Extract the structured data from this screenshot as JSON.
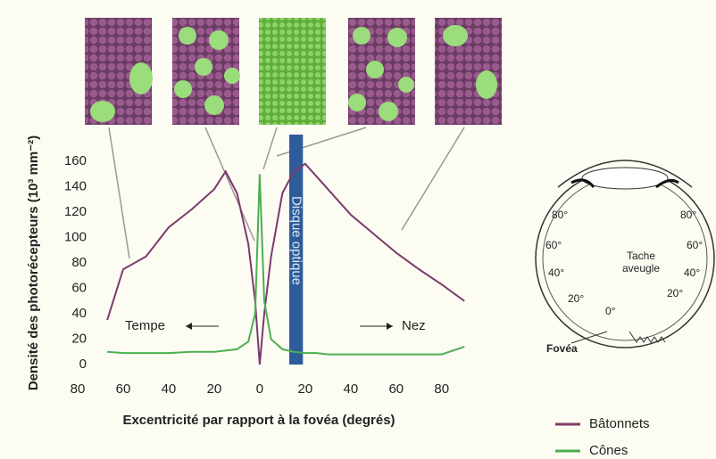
{
  "chart_data": {
    "type": "line",
    "y_label": "Densité des photorécepteurs (10³ mm⁻²)",
    "x_label": "Excentricité par rapport à la fovéa (degrés)",
    "x": [
      -67,
      -60,
      -50,
      -40,
      -30,
      -20,
      -15,
      -10,
      -5,
      -2,
      0,
      2,
      5,
      10,
      15,
      20,
      25,
      30,
      40,
      50,
      60,
      70,
      80,
      90
    ],
    "series": [
      {
        "name": "Bâtonnets",
        "color": "#7b3a6a",
        "values": [
          35,
          75,
          85,
          108,
          122,
          138,
          152,
          135,
          95,
          50,
          0,
          40,
          85,
          135,
          152,
          158,
          148,
          138,
          118,
          103,
          88,
          75,
          63,
          50
        ]
      },
      {
        "name": "Cônes",
        "color": "#4caf50",
        "values": [
          10,
          9,
          9,
          9,
          10,
          10,
          11,
          12,
          18,
          40,
          150,
          50,
          20,
          12,
          10,
          9,
          9,
          8,
          8,
          8,
          8,
          8,
          8,
          14
        ]
      }
    ],
    "xlim": [
      -80,
      95
    ],
    "xticks": [
      {
        "value": -80,
        "label": "80"
      },
      {
        "value": -60,
        "label": "60"
      },
      {
        "value": -40,
        "label": "40"
      },
      {
        "value": -20,
        "label": "20"
      },
      0,
      20,
      40,
      60,
      80
    ],
    "ylim": [
      0,
      160
    ],
    "yticks": [
      0,
      20,
      40,
      60,
      80,
      100,
      120,
      140,
      160
    ],
    "optic_disc": {
      "label": "Disque optique",
      "x_range": [
        13,
        19
      ]
    },
    "annotations": {
      "left": "Tempe",
      "right": "Nez"
    },
    "legend": "bottom-right"
  },
  "eye_diagram": {
    "labels": [
      "80°",
      "60°",
      "40°",
      "20°",
      "0°",
      "20°",
      "40°",
      "60°",
      "80°",
      "Tache",
      "aveugle",
      "Fovéa"
    ]
  }
}
